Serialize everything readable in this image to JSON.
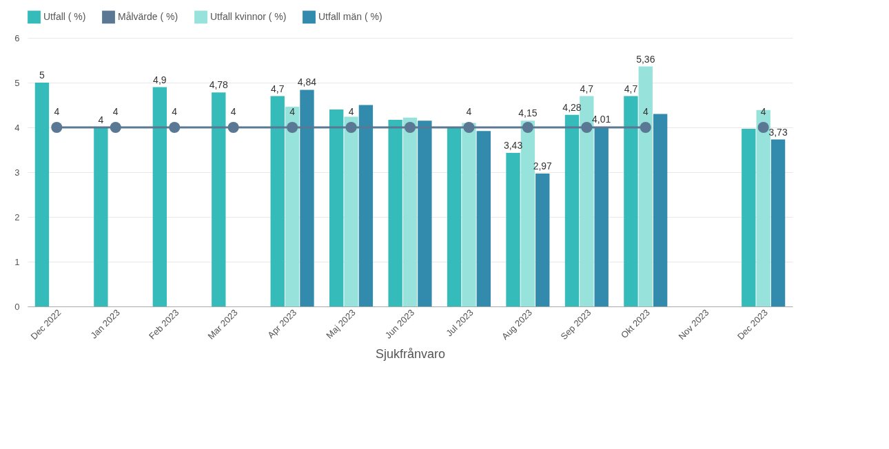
{
  "chart_data": {
    "type": "bar",
    "xlabel": "Sjukfrånvaro",
    "categories": [
      "Dec 2022",
      "Jan 2023",
      "Feb 2023",
      "Mar 2023",
      "Apr 2023",
      "Maj 2023",
      "Jun 2023",
      "Jul 2023",
      "Aug 2023",
      "Sep 2023",
      "Okt 2023",
      "Nov 2023",
      "Dec 2023"
    ],
    "series": [
      {
        "name": "Utfall ( %)",
        "color": "#36bbbb",
        "values": [
          5,
          4,
          4.9,
          4.78,
          4.7,
          4.4,
          4.17,
          4.0,
          3.43,
          4.28,
          4.7,
          null,
          3.97
        ],
        "value_labels": [
          "5",
          "4",
          "4,9",
          "4,78",
          "4,7",
          null,
          null,
          null,
          "3,43",
          "4,28",
          "4,7",
          null,
          null
        ]
      },
      {
        "name": "Målvärde ( %)",
        "type": "line",
        "marker": "circle",
        "color": "#5a7894",
        "values": [
          4,
          4,
          4,
          4,
          4,
          4,
          4,
          4,
          4,
          4,
          4,
          null,
          4
        ],
        "value_labels": [
          "4",
          "4",
          "4",
          "4",
          "4",
          "4",
          null,
          "4",
          null,
          null,
          "4",
          null,
          "4"
        ]
      },
      {
        "name": "Utfall kvinnor ( %)",
        "color": "#98e2dc",
        "values": [
          null,
          null,
          null,
          null,
          4.46,
          4.24,
          4.22,
          4.1,
          4.15,
          4.7,
          5.36,
          null,
          4.39
        ],
        "value_labels": [
          null,
          null,
          null,
          null,
          null,
          null,
          null,
          null,
          "4,15",
          "4,7",
          "5,36",
          null,
          null
        ]
      },
      {
        "name": "Utfall män ( %)",
        "color": "#328aad",
        "values": [
          null,
          null,
          null,
          null,
          4.84,
          4.5,
          4.15,
          3.92,
          2.97,
          4.01,
          4.3,
          null,
          3.73
        ],
        "value_labels": [
          null,
          null,
          null,
          null,
          "4,84",
          null,
          null,
          null,
          "2,97",
          "4,01",
          null,
          null,
          "3,73"
        ]
      }
    ],
    "ylim": [
      0,
      6
    ],
    "yticks": [
      0,
      1,
      2,
      3,
      4,
      5,
      6
    ],
    "grid": "y",
    "legend": "top left"
  }
}
